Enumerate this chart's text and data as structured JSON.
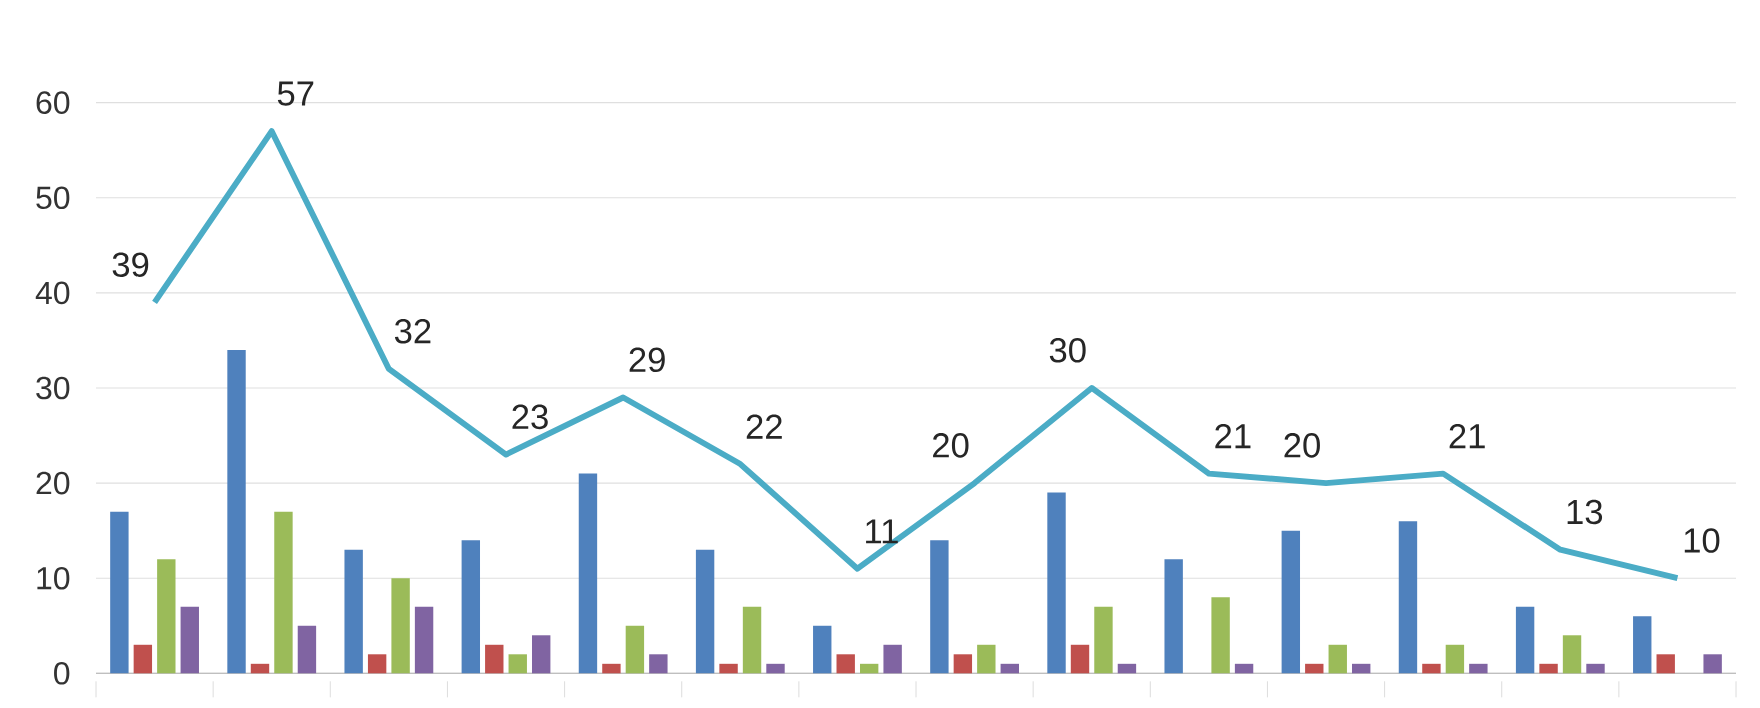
{
  "chart_data": {
    "type": "bar",
    "categories": [
      null,
      null,
      null,
      null,
      null,
      null,
      null,
      null,
      null,
      null,
      null,
      null,
      null,
      null
    ],
    "series": [
      {
        "color": "#4f81bd",
        "values": [
          17,
          34,
          13,
          14,
          21,
          13,
          5,
          14,
          19,
          12,
          15,
          16,
          7,
          6
        ]
      },
      {
        "color": "#c0504d",
        "values": [
          3,
          1,
          2,
          3,
          1,
          1,
          2,
          2,
          3,
          0,
          1,
          1,
          1,
          2
        ]
      },
      {
        "color": "#9bbb59",
        "values": [
          12,
          17,
          10,
          2,
          5,
          7,
          1,
          3,
          7,
          8,
          3,
          3,
          4,
          0
        ]
      },
      {
        "color": "#8064a2",
        "values": [
          7,
          5,
          7,
          4,
          2,
          1,
          3,
          1,
          1,
          1,
          1,
          1,
          1,
          2
        ]
      },
      {
        "type": "line",
        "color": "#4bacc6",
        "data_labels": true,
        "values": [
          39,
          57,
          32,
          23,
          29,
          22,
          11,
          20,
          30,
          21,
          20,
          21,
          13,
          10
        ]
      }
    ],
    "ylim": [
      0,
      60
    ],
    "yticks": [
      0,
      10,
      20,
      30,
      40,
      50,
      60
    ],
    "grid": "y",
    "marker": "none"
  }
}
